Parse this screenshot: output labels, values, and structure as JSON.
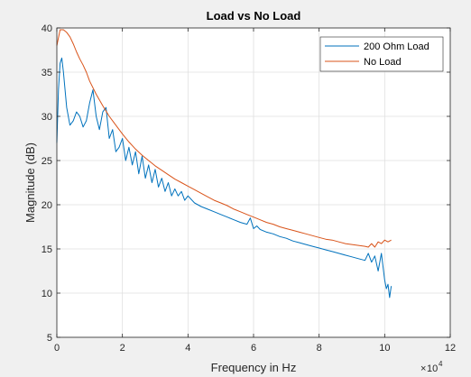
{
  "chart_data": {
    "type": "line",
    "title": "Load vs No Load",
    "xlabel": "Frequency in Hz",
    "ylabel": "Magnitude (dB)",
    "x_exponent_label": "10",
    "x_exponent_power": "4",
    "xlim": [
      0,
      12
    ],
    "ylim": [
      5,
      40
    ],
    "x_ticks": [
      0,
      2,
      4,
      6,
      8,
      10,
      12
    ],
    "y_ticks": [
      5,
      10,
      15,
      20,
      25,
      30,
      35,
      40
    ],
    "grid": true,
    "legend_position": "top-right",
    "series": [
      {
        "name": "200 Ohm Load",
        "color": "#0072bd",
        "x": [
          0,
          0.05,
          0.1,
          0.15,
          0.2,
          0.3,
          0.4,
          0.5,
          0.6,
          0.7,
          0.8,
          0.9,
          1.0,
          1.1,
          1.2,
          1.3,
          1.4,
          1.5,
          1.6,
          1.7,
          1.8,
          1.9,
          2.0,
          2.1,
          2.2,
          2.3,
          2.4,
          2.5,
          2.6,
          2.7,
          2.8,
          2.9,
          3.0,
          3.1,
          3.2,
          3.3,
          3.4,
          3.5,
          3.6,
          3.7,
          3.8,
          3.9,
          4.0,
          4.2,
          4.4,
          4.6,
          4.8,
          5.0,
          5.2,
          5.4,
          5.6,
          5.8,
          5.9,
          6.0,
          6.1,
          6.2,
          6.4,
          6.6,
          6.8,
          7.0,
          7.2,
          7.4,
          7.6,
          7.8,
          8.0,
          8.2,
          8.4,
          8.6,
          8.8,
          9.0,
          9.2,
          9.4,
          9.5,
          9.6,
          9.7,
          9.8,
          9.9,
          10.0,
          10.05,
          10.1,
          10.15,
          10.2
        ],
        "values": [
          27,
          33,
          36,
          36.6,
          35,
          31,
          29,
          29.5,
          30.5,
          30,
          28.8,
          29.5,
          31.5,
          33,
          30,
          28.5,
          30.5,
          31,
          27.5,
          28.5,
          26,
          26.5,
          27.5,
          25,
          26.5,
          24.5,
          26,
          23.5,
          25.5,
          23,
          24.5,
          22.5,
          24,
          22,
          23,
          21.5,
          22.5,
          21,
          21.8,
          21,
          21.5,
          20.5,
          21,
          20.2,
          19.8,
          19.5,
          19.2,
          18.9,
          18.6,
          18.3,
          18,
          17.8,
          18.5,
          17.3,
          17.6,
          17.2,
          16.9,
          16.7,
          16.4,
          16.2,
          15.9,
          15.7,
          15.5,
          15.3,
          15.1,
          14.9,
          14.7,
          14.5,
          14.3,
          14.1,
          13.9,
          13.7,
          14.5,
          13.5,
          14.2,
          12.5,
          14.5,
          11.5,
          10.5,
          11,
          9.5,
          10.8
        ]
      },
      {
        "name": "No Load",
        "color": "#d95319",
        "x": [
          0,
          0.1,
          0.2,
          0.3,
          0.4,
          0.5,
          0.6,
          0.7,
          0.8,
          0.9,
          1.0,
          1.2,
          1.4,
          1.6,
          1.8,
          2.0,
          2.2,
          2.4,
          2.6,
          2.8,
          3.0,
          3.2,
          3.4,
          3.6,
          3.8,
          4.0,
          4.2,
          4.4,
          4.6,
          4.8,
          5.0,
          5.2,
          5.4,
          5.6,
          5.8,
          6.0,
          6.2,
          6.4,
          6.6,
          6.8,
          7.0,
          7.2,
          7.4,
          7.6,
          7.8,
          8.0,
          8.2,
          8.4,
          8.6,
          8.8,
          9.0,
          9.2,
          9.4,
          9.5,
          9.6,
          9.7,
          9.8,
          9.9,
          10.0,
          10.1,
          10.2
        ],
        "values": [
          38,
          39.8,
          39.8,
          39.5,
          39,
          38.2,
          37.3,
          36.5,
          35.8,
          35,
          34,
          32.5,
          31.2,
          30,
          29,
          28,
          27.1,
          26.3,
          25.6,
          25,
          24.4,
          23.9,
          23.4,
          22.9,
          22.5,
          22.1,
          21.7,
          21.3,
          20.9,
          20.5,
          20.2,
          19.9,
          19.5,
          19.2,
          18.9,
          18.6,
          18.3,
          18,
          17.8,
          17.5,
          17.3,
          17.1,
          16.9,
          16.7,
          16.5,
          16.3,
          16.1,
          16,
          15.8,
          15.6,
          15.5,
          15.4,
          15.3,
          15.2,
          15.6,
          15.2,
          15.8,
          15.6,
          16,
          15.8,
          16
        ]
      }
    ]
  }
}
